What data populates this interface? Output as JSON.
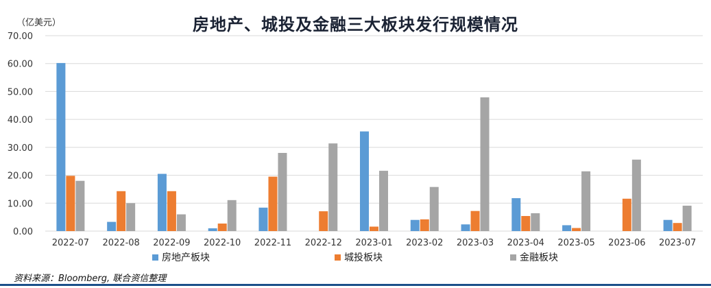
{
  "header": {
    "title": "房地产、城投及金融三大板块发行规模情况",
    "unit": "（亿美元）"
  },
  "source": "资料来源：Bloomberg, 联合资信整理",
  "colors": {
    "series": [
      "#5b9bd5",
      "#ed7d31",
      "#a5a5a5"
    ],
    "grid": "#d9d9d9",
    "bottom_rule": "#1a4f8a"
  },
  "chart_data": {
    "type": "bar",
    "title": "房地产、城投及金融三大板块发行规模情况",
    "ylabel": "（亿美元）",
    "xlabel": "",
    "ylim": [
      0,
      70
    ],
    "yticks": [
      "0.00",
      "10.00",
      "20.00",
      "30.00",
      "40.00",
      "50.00",
      "60.00",
      "70.00"
    ],
    "grid": true,
    "legend": "bottom",
    "categories": [
      "2022-07",
      "2022-08",
      "2022-09",
      "2022-10",
      "2022-11",
      "2022-12",
      "2023-01",
      "2023-02",
      "2023-03",
      "2023-04",
      "2023-05",
      "2023-06",
      "2023-07"
    ],
    "series": [
      {
        "name": "房地产板块",
        "values": [
          60.2,
          3.3,
          20.5,
          1.0,
          8.4,
          0,
          35.7,
          4.0,
          2.4,
          11.8,
          2.1,
          0,
          4.0
        ]
      },
      {
        "name": "城投板块",
        "values": [
          19.8,
          14.3,
          14.3,
          2.7,
          19.5,
          7.1,
          1.6,
          4.2,
          7.2,
          5.4,
          1.1,
          11.6,
          2.9
        ]
      },
      {
        "name": "金融板块",
        "values": [
          18.0,
          10.0,
          6.0,
          11.1,
          28.0,
          31.4,
          21.6,
          15.8,
          47.9,
          6.4,
          21.4,
          25.6,
          9.1
        ]
      }
    ]
  }
}
